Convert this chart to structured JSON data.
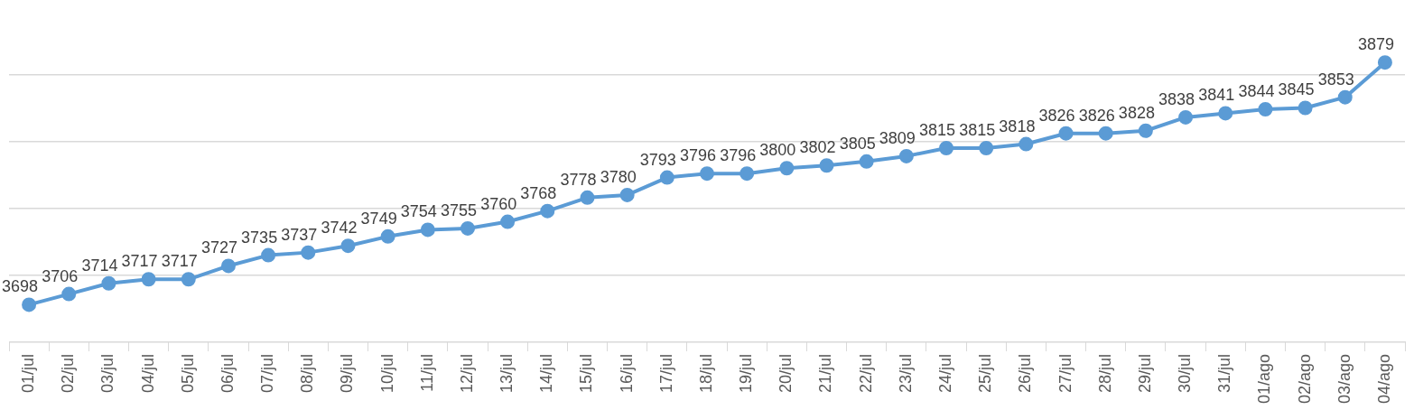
{
  "chart_data": {
    "type": "line",
    "categories": [
      "01/jul",
      "02/jul",
      "03/jul",
      "04/jul",
      "05/jul",
      "06/jul",
      "07/jul",
      "08/jul",
      "09/jul",
      "10/jul",
      "11/jul",
      "12/jul",
      "13/jul",
      "14/jul",
      "15/jul",
      "16/jul",
      "17/jul",
      "18/jul",
      "19/jul",
      "20/jul",
      "21/jul",
      "22/jul",
      "23/jul",
      "24/jul",
      "25/jul",
      "26/jul",
      "27/jul",
      "28/jul",
      "29/jul",
      "30/jul",
      "31/jul",
      "01/ago",
      "02/ago",
      "03/ago",
      "04/ago"
    ],
    "series": [
      {
        "color": "#5b9bd5",
        "values": [
          3698,
          3706,
          3714,
          3717,
          3717,
          3727,
          3735,
          3737,
          3742,
          3749,
          3754,
          3755,
          3760,
          3768,
          3778,
          3780,
          3793,
          3796,
          3796,
          3800,
          3802,
          3805,
          3809,
          3815,
          3815,
          3818,
          3826,
          3826,
          3828,
          3838,
          3841,
          3844,
          3845,
          3853,
          3879
        ]
      }
    ],
    "yticks": [
      {
        "value": 3670,
        "label": null
      },
      {
        "value": 3720,
        "label": null
      },
      {
        "value": 3770,
        "label": null
      },
      {
        "value": 3820,
        "label": null
      },
      {
        "value": 3870,
        "label": null
      }
    ],
    "grid": "y",
    "legend": false,
    "marker": "circle",
    "line_style": "solid",
    "data_labels": true,
    "tick_labels": "x"
  }
}
